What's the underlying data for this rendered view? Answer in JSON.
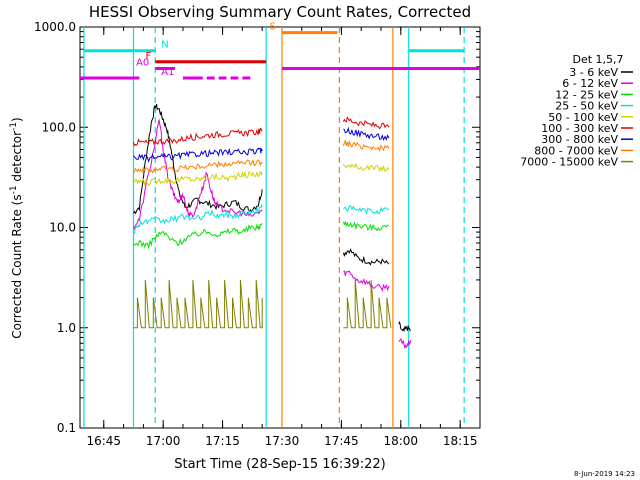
{
  "chart_data": {
    "type": "line",
    "title": "HESSI Observing Summary Count Rates, Corrected",
    "xlabel": "Start Time (28-Sep-15 16:39:22)",
    "ylabel_main": "Corrected Count Rate (s",
    "ylabel_sup1": "-1",
    "ylabel_mid": " detector",
    "ylabel_sup2": "-1",
    "ylabel_end": ")",
    "yscale": "log",
    "ylim": [
      0.1,
      1000
    ],
    "xlim": [
      "16:39",
      "18:20"
    ],
    "xlim_min": [
      999,
      1100
    ],
    "grid": false,
    "y_ticks": [
      {
        "label": "0.1",
        "v": 0.1
      },
      {
        "label": "1.0",
        "v": 1
      },
      {
        "label": "10.0",
        "v": 10
      },
      {
        "label": "100.0",
        "v": 100
      },
      {
        "label": "1000.0",
        "v": 1000
      }
    ],
    "x_ticks": [
      {
        "label": "16:45",
        "t": 1005
      },
      {
        "label": "17:00",
        "t": 1020
      },
      {
        "label": "17:15",
        "t": 1035
      },
      {
        "label": "17:30",
        "t": 1050
      },
      {
        "label": "17:45",
        "t": 1065
      },
      {
        "label": "18:00",
        "t": 1080
      },
      {
        "label": "18:15",
        "t": 1095
      }
    ],
    "legend": {
      "title": "Det 1,5,7",
      "placement": "right",
      "entries": [
        {
          "label": "3 - 6 keV",
          "color": "#000000"
        },
        {
          "label": "6 - 12 keV",
          "color": "#e000e0"
        },
        {
          "label": "12 - 25 keV",
          "color": "#00e000"
        },
        {
          "label": "25 - 50 keV",
          "color": "#00e0e0"
        },
        {
          "label": "50 - 100 keV",
          "color": "#d0d000"
        },
        {
          "label": "100 - 300 keV",
          "color": "#e00000"
        },
        {
          "label": "300 - 800 keV",
          "color": "#0000e0"
        },
        {
          "label": "800 - 7000 keV",
          "color": "#ff8000"
        },
        {
          "label": "7000 - 15000 keV",
          "color": "#808000"
        }
      ]
    },
    "series": [
      {
        "name": "3 - 6 keV",
        "color": "#000000",
        "segments": [
          {
            "x": [
              1012.5,
              1014,
              1015.5,
              1017,
              1018,
              1019,
              1020,
              1021,
              1022,
              1023,
              1024,
              1025.5,
              1027,
              1028.5,
              1030,
              1032,
              1034,
              1036,
              1038,
              1040,
              1042,
              1044,
              1045
            ],
            "y": [
              14,
              16,
              45,
              110,
              165,
              150,
              120,
              95,
              60,
              35,
              22,
              16,
              17,
              19,
              18,
              17,
              16,
              17,
              18,
              16,
              15,
              17,
              24
            ]
          },
          {
            "x": [
              1065.5,
              1067,
              1069,
              1071,
              1073,
              1075,
              1077
            ],
            "y": [
              5.5,
              6,
              5,
              4.7,
              4.5,
              4.6,
              4.3
            ]
          },
          {
            "x": [
              1079.5,
              1080.5,
              1081.5,
              1082.5
            ],
            "y": [
              1.1,
              0.9,
              1.0,
              0.95
            ]
          }
        ]
      },
      {
        "name": "6 - 12 keV",
        "color": "#e000e0",
        "segments": [
          {
            "x": [
              1012.5,
              1014,
              1016,
              1018,
              1019,
              1020,
              1021,
              1022,
              1023,
              1024,
              1025,
              1026,
              1027,
              1028,
              1029,
              1030,
              1031,
              1032,
              1033,
              1034,
              1036,
              1038,
              1040,
              1042,
              1044,
              1045
            ],
            "y": [
              10,
              12,
              30,
              70,
              120,
              60,
              35,
              25,
              20,
              18,
              22,
              15,
              13,
              14,
              20,
              25,
              35,
              24,
              18,
              16,
              15,
              14,
              14,
              13,
              14,
              15
            ]
          },
          {
            "x": [
              1065.5,
              1067,
              1069,
              1071,
              1073,
              1075,
              1077
            ],
            "y": [
              3.5,
              3.6,
              3.0,
              2.9,
              2.6,
              2.5,
              2.6
            ]
          },
          {
            "x": [
              1079.5,
              1080.5,
              1081.5,
              1082.5
            ],
            "y": [
              0.75,
              0.7,
              0.65,
              0.75
            ]
          }
        ]
      },
      {
        "name": "12 - 25 keV",
        "color": "#00e000",
        "segments": [
          {
            "x": [
              1012.5,
              1014,
              1016,
              1018,
              1020,
              1022,
              1024,
              1026,
              1028,
              1030,
              1032,
              1034,
              1036,
              1038,
              1040,
              1042,
              1044,
              1045
            ],
            "y": [
              6.5,
              7.2,
              6.5,
              8,
              9,
              7.5,
              7,
              8,
              8.5,
              9,
              9,
              8.5,
              9,
              9.5,
              9,
              10,
              10,
              11
            ]
          },
          {
            "x": [
              1065.5,
              1067,
              1069,
              1071,
              1073,
              1075,
              1077
            ],
            "y": [
              11,
              11,
              10.5,
              10.2,
              10,
              10,
              10.5
            ]
          }
        ]
      },
      {
        "name": "25 - 50 keV",
        "color": "#00e0e0",
        "segments": [
          {
            "x": [
              1012.5,
              1014,
              1016,
              1018,
              1020,
              1022,
              1024,
              1026,
              1028,
              1030,
              1032,
              1034,
              1036,
              1038,
              1040,
              1042,
              1044,
              1045
            ],
            "y": [
              9,
              11,
              11.5,
              12,
              11.5,
              12,
              12.5,
              13,
              12,
              13,
              14,
              13,
              13.5,
              13,
              14,
              14,
              15,
              16
            ]
          },
          {
            "x": [
              1065.5,
              1067,
              1069,
              1071,
              1073,
              1075,
              1077
            ],
            "y": [
              16,
              15.5,
              15,
              14.8,
              14.5,
              14.8,
              15
            ]
          }
        ]
      },
      {
        "name": "50 - 100 keV",
        "color": "#d0d000",
        "segments": [
          {
            "x": [
              1012.5,
              1014,
              1016,
              1018,
              1020,
              1022,
              1024,
              1026,
              1028,
              1030,
              1032,
              1034,
              1036,
              1038,
              1040,
              1042,
              1044,
              1045
            ],
            "y": [
              28,
              29,
              28,
              29,
              30,
              29,
              30,
              31,
              30,
              31,
              32,
              32,
              31,
              32,
              33,
              34,
              34,
              35
            ]
          },
          {
            "x": [
              1065.5,
              1067,
              1069,
              1071,
              1073,
              1075,
              1077
            ],
            "y": [
              42,
              41,
              40,
              40,
              39,
              39,
              38
            ]
          }
        ]
      },
      {
        "name": "100 - 300 keV",
        "color": "#e00000",
        "segments": [
          {
            "x": [
              1012.5,
              1014,
              1016,
              1018,
              1020,
              1022,
              1024,
              1026,
              1028,
              1030,
              1032,
              1034,
              1036,
              1038,
              1040,
              1042,
              1044,
              1045
            ],
            "y": [
              70,
              71,
              70,
              72,
              73,
              72,
              75,
              78,
              80,
              82,
              84,
              85,
              86,
              87,
              88,
              88,
              90,
              92
            ]
          },
          {
            "x": [
              1065.5,
              1067,
              1069,
              1071,
              1073,
              1075,
              1077
            ],
            "y": [
              120,
              118,
              112,
              108,
              105,
              103,
              100
            ]
          }
        ]
      },
      {
        "name": "300 - 800 keV",
        "color": "#0000e0",
        "segments": [
          {
            "x": [
              1012.5,
              1014,
              1016,
              1018,
              1020,
              1022,
              1024,
              1026,
              1028,
              1030,
              1032,
              1034,
              1036,
              1038,
              1040,
              1042,
              1044,
              1045
            ],
            "y": [
              50,
              50,
              49,
              50,
              51,
              50,
              52,
              53,
              54,
              55,
              55,
              56,
              56,
              57,
              56,
              57,
              58,
              58
            ]
          },
          {
            "x": [
              1065.5,
              1067,
              1069,
              1071,
              1073,
              1075,
              1077
            ],
            "y": [
              95,
              92,
              88,
              85,
              82,
              80,
              78
            ]
          }
        ]
      },
      {
        "name": "800 - 7000 keV",
        "color": "#ff8000",
        "segments": [
          {
            "x": [
              1012.5,
              1014,
              1016,
              1018,
              1020,
              1022,
              1024,
              1026,
              1028,
              1030,
              1032,
              1034,
              1036,
              1038,
              1040,
              1042,
              1044,
              1045
            ],
            "y": [
              38,
              38,
              37,
              38,
              39,
              38,
              39,
              40,
              40,
              41,
              42,
              42,
              43,
              43,
              44,
              44,
              45,
              45
            ]
          },
          {
            "x": [
              1065.5,
              1067,
              1069,
              1071,
              1073,
              1075,
              1077
            ],
            "y": [
              70,
              68,
              66,
              65,
              63,
              62,
              61
            ]
          }
        ]
      },
      {
        "name": "7000 - 15000 keV",
        "color": "#808000",
        "segments": [
          {
            "x": [
              1012.5,
              1013.5,
              1014.5,
              1015.5,
              1016.5,
              1017.5,
              1018.5,
              1019.5,
              1020.5,
              1021.5,
              1022.5,
              1023.5,
              1024.5,
              1025.5,
              1026.5,
              1027.5,
              1028.5,
              1029.5,
              1030.5,
              1031.5,
              1032.5,
              1033.5,
              1034.5,
              1035.5,
              1036.5,
              1037.5,
              1038.5,
              1039.5,
              1040.5,
              1041.5,
              1042.5,
              1043.5,
              1044.5,
              1045
            ],
            "y": [
              1,
              2,
              1,
              3,
              1,
              2,
              1,
              2,
              1,
              3,
              1,
              2,
              1,
              2,
              1,
              3,
              1,
              2,
              1,
              3,
              1,
              2,
              1,
              3,
              1,
              2,
              1,
              3,
              1,
              2,
              1,
              3,
              1,
              2
            ]
          },
          {
            "x": [
              1065.5,
              1066.5,
              1067.5,
              1068.5,
              1069.5,
              1070.5,
              1071.5,
              1072.5,
              1073.5,
              1074.5,
              1075.5,
              1076.5,
              1077.5
            ],
            "y": [
              1,
              2,
              1,
              3,
              1,
              2,
              1,
              3,
              1,
              2,
              1,
              2,
              1
            ]
          }
        ]
      }
    ],
    "flags": [
      {
        "label": "N",
        "color": "#00e0e0",
        "y": 580,
        "segments": [
          [
            1000,
            1018
          ],
          [
            1082,
            1096
          ]
        ],
        "label_t": 1019,
        "label_side": "right"
      },
      {
        "label": "F",
        "color": "#e00000",
        "y": 450,
        "segments": [
          [
            1018,
            1046
          ]
        ],
        "label_t": 1017.5,
        "label_side": "left"
      },
      {
        "label": "S",
        "color": "#ff8000",
        "y": 880,
        "segments": [
          [
            1050,
            1064
          ]
        ],
        "label_t": 1049,
        "label_side": "left"
      },
      {
        "label": "A0",
        "color": "#e000e0",
        "y": 385,
        "segments": [
          [
            1018,
            1023
          ],
          [
            1050,
            1100
          ]
        ],
        "label_t": 1017,
        "label_side": "left"
      },
      {
        "label": "A1",
        "color": "#e000e0",
        "y": 310,
        "segments": [
          [
            999,
            1014
          ],
          [
            1025,
            1030
          ],
          [
            1031,
            1033
          ],
          [
            1034,
            1036
          ],
          [
            1037,
            1039
          ],
          [
            1040,
            1042
          ]
        ],
        "label_t": 1019,
        "label_side": "right"
      }
    ],
    "vlines": [
      {
        "t": 1000,
        "color": "#00e0e0",
        "style": "solid"
      },
      {
        "t": 1018,
        "color": "#00e0e0",
        "style": "dashed"
      },
      {
        "t": 1082,
        "color": "#00e0e0",
        "style": "solid"
      },
      {
        "t": 1096,
        "color": "#00e0e0",
        "style": "dashed"
      },
      {
        "t": 1050,
        "color": "#ff8000",
        "style": "solid"
      },
      {
        "t": 1064.5,
        "color": "#ff8000",
        "style": "dashed"
      },
      {
        "t": 1012.5,
        "color": "#00e0e0",
        "style": "solid"
      },
      {
        "t": 1046,
        "color": "#00e0e0",
        "style": "solid"
      },
      {
        "t": 1078,
        "color": "#ff8000",
        "style": "solid"
      }
    ],
    "timestamp": "8-Jun-2019 14:23"
  }
}
